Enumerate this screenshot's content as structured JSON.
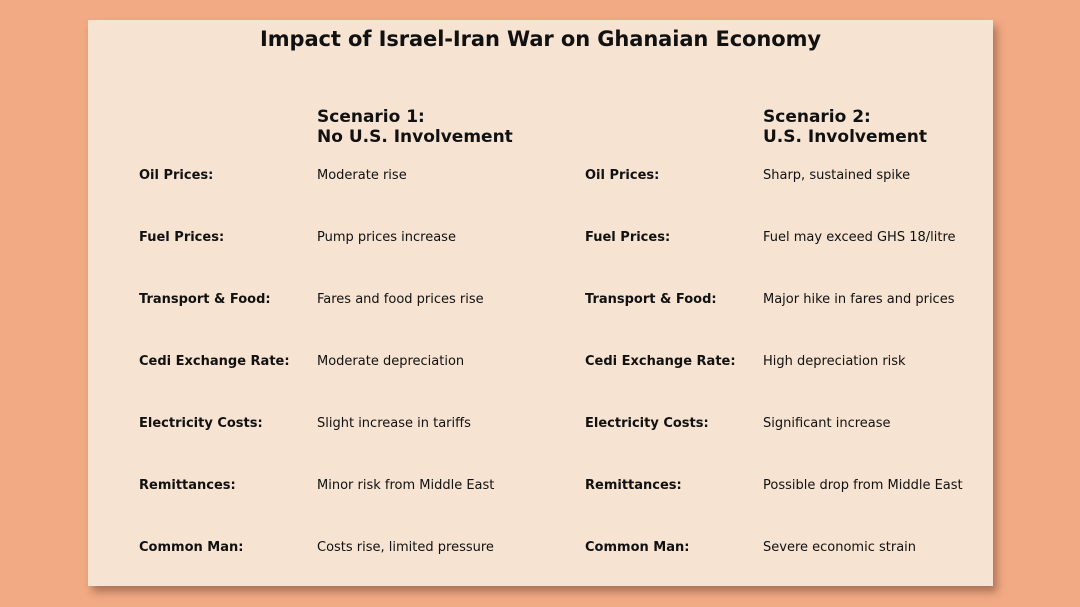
{
  "title": "Impact of Israel-Iran War on Ghanaian Economy",
  "scenario1": {
    "line1": "Scenario 1:",
    "line2": "No U.S. Involvement",
    "rows": [
      {
        "label": "Oil Prices:",
        "value": "Moderate rise"
      },
      {
        "label": "Fuel Prices:",
        "value": "Pump prices increase"
      },
      {
        "label": "Transport & Food:",
        "value": "Fares and food prices rise"
      },
      {
        "label": "Cedi Exchange Rate:",
        "value": "Moderate depreciation"
      },
      {
        "label": "Electricity Costs:",
        "value": "Slight increase in tariffs"
      },
      {
        "label": "Remittances:",
        "value": "Minor risk from Middle East"
      },
      {
        "label": "Common Man:",
        "value": "Costs rise, limited pressure"
      }
    ]
  },
  "scenario2": {
    "line1": "Scenario 2:",
    "line2": "U.S. Involvement",
    "rows": [
      {
        "label": "Oil Prices:",
        "value": "Sharp, sustained spike"
      },
      {
        "label": "Fuel Prices:",
        "value": "Fuel may exceed GHS 18/litre"
      },
      {
        "label": "Transport & Food:",
        "value": "Major hike in fares and prices"
      },
      {
        "label": "Cedi Exchange Rate:",
        "value": "High depreciation risk"
      },
      {
        "label": "Electricity Costs:",
        "value": "Significant increase"
      },
      {
        "label": "Remittances:",
        "value": "Possible drop from Middle East"
      },
      {
        "label": "Common Man:",
        "value": "Severe economic strain"
      }
    ]
  }
}
